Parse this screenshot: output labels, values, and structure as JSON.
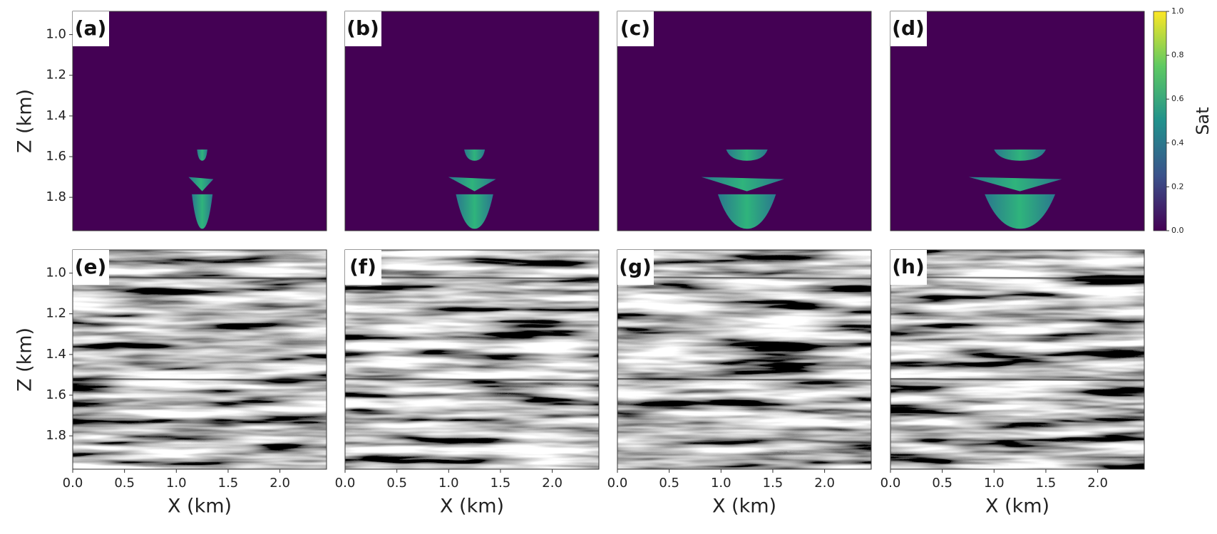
{
  "chart_data": [
    {
      "type": "image",
      "panel_label": "(a)",
      "colormap": "viridis",
      "xlim": [
        0,
        2.45
      ],
      "ylim": [
        1.964,
        0.886
      ],
      "ylabel": "Z (km)",
      "yticks": [
        {
          "value": 1,
          "label": "1.0"
        },
        1.2,
        1.4,
        1.6,
        1.8
      ]
    },
    {
      "type": "image",
      "panel_label": "(b)",
      "colormap": "viridis",
      "xlim": [
        0,
        2.45
      ],
      "ylim": [
        1.964,
        0.886
      ]
    },
    {
      "type": "image",
      "panel_label": "(c)",
      "colormap": "viridis",
      "xlim": [
        0,
        2.45
      ],
      "ylim": [
        1.964,
        0.886
      ]
    },
    {
      "type": "image",
      "panel_label": "(d)",
      "colormap": "viridis",
      "xlim": [
        0,
        2.45
      ],
      "ylim": [
        1.964,
        0.886
      ]
    },
    {
      "type": "image",
      "panel_label": "(e)",
      "colormap": "gray",
      "xlim": [
        0,
        2.45
      ],
      "ylim": [
        1.964,
        0.886
      ],
      "ylabel": "Z (km)",
      "yticks": [
        {
          "value": 1,
          "label": "1.0"
        },
        1.2,
        1.4,
        1.6,
        1.8
      ],
      "xlabel": "X (km)",
      "xticks": [
        {
          "value": 0,
          "label": "0.0"
        },
        0.5,
        {
          "value": 1,
          "label": "1.0"
        },
        1.5,
        {
          "value": 2,
          "label": "2.0"
        }
      ]
    },
    {
      "type": "image",
      "panel_label": "(f)",
      "colormap": "gray",
      "xlim": [
        0,
        2.45
      ],
      "ylim": [
        1.964,
        0.886
      ],
      "xlabel": "X (km)",
      "xticks": [
        {
          "value": 0,
          "label": "0.0"
        },
        0.5,
        {
          "value": 1,
          "label": "1.0"
        },
        1.5,
        {
          "value": 2,
          "label": "2.0"
        }
      ]
    },
    {
      "type": "image",
      "panel_label": "(g)",
      "colormap": "gray",
      "xlim": [
        0,
        2.45
      ],
      "ylim": [
        1.964,
        0.886
      ],
      "xlabel": "X (km)",
      "xticks": [
        {
          "value": 0,
          "label": "0.0"
        },
        0.5,
        {
          "value": 1,
          "label": "1.0"
        },
        1.5,
        {
          "value": 2,
          "label": "2.0"
        }
      ]
    },
    {
      "type": "image",
      "panel_label": "(h)",
      "colormap": "gray",
      "xlim": [
        0,
        2.45
      ],
      "ylim": [
        1.964,
        0.886
      ],
      "xlabel": "X (km)",
      "xticks": [
        {
          "value": 0,
          "label": "0.0"
        },
        0.5,
        {
          "value": 1,
          "label": "1.0"
        },
        1.5,
        {
          "value": 2,
          "label": "2.0"
        }
      ]
    },
    {
      "type": "colorbar",
      "label": "Sat",
      "lim": [
        0,
        1
      ],
      "ticks": [
        {
          "value": 0,
          "label": "0.0"
        },
        0.2,
        0.4,
        0.6,
        0.8,
        {
          "value": 1,
          "label": "1.0"
        }
      ],
      "colors": [
        "#440154",
        "#3b528b",
        "#21918c",
        "#5ec962",
        "#fde725"
      ]
    }
  ]
}
